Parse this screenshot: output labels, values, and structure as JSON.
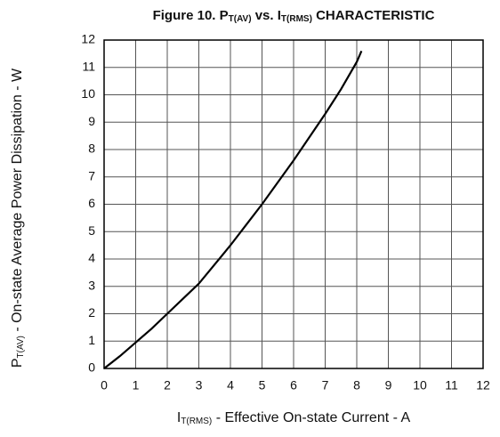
{
  "chart_data": {
    "type": "line",
    "title": [
      "Figure 10.  P",
      "T(AV)",
      " vs. I",
      "T(RMS)",
      " CHARACTERISTIC"
    ],
    "x_label": [
      "I",
      "T(RMS)",
      " - Effective On-state Current - A"
    ],
    "y_label": [
      "P",
      "T(AV)",
      " - On-state Average Power Dissipation - W"
    ],
    "x": [
      0,
      0.5,
      1,
      1.5,
      2,
      2.5,
      3,
      3.5,
      4,
      4.5,
      5,
      5.5,
      6,
      6.5,
      7,
      7.5,
      8,
      8.15
    ],
    "series": [
      {
        "name": "PT(AV)",
        "color": "#000000",
        "values": [
          0,
          0.45,
          0.95,
          1.45,
          2,
          2.55,
          3.1,
          3.8,
          4.5,
          5.25,
          6,
          6.8,
          7.6,
          8.45,
          9.3,
          10.2,
          11.2,
          11.6
        ]
      }
    ],
    "xlim": [
      0,
      12
    ],
    "ylim": [
      0,
      12
    ],
    "xticks": [
      0,
      1,
      2,
      3,
      4,
      5,
      6,
      7,
      8,
      9,
      10,
      11,
      12
    ],
    "yticks": [
      0,
      1,
      2,
      3,
      4,
      5,
      6,
      7,
      8,
      9,
      10,
      11,
      12
    ],
    "grid": true
  }
}
